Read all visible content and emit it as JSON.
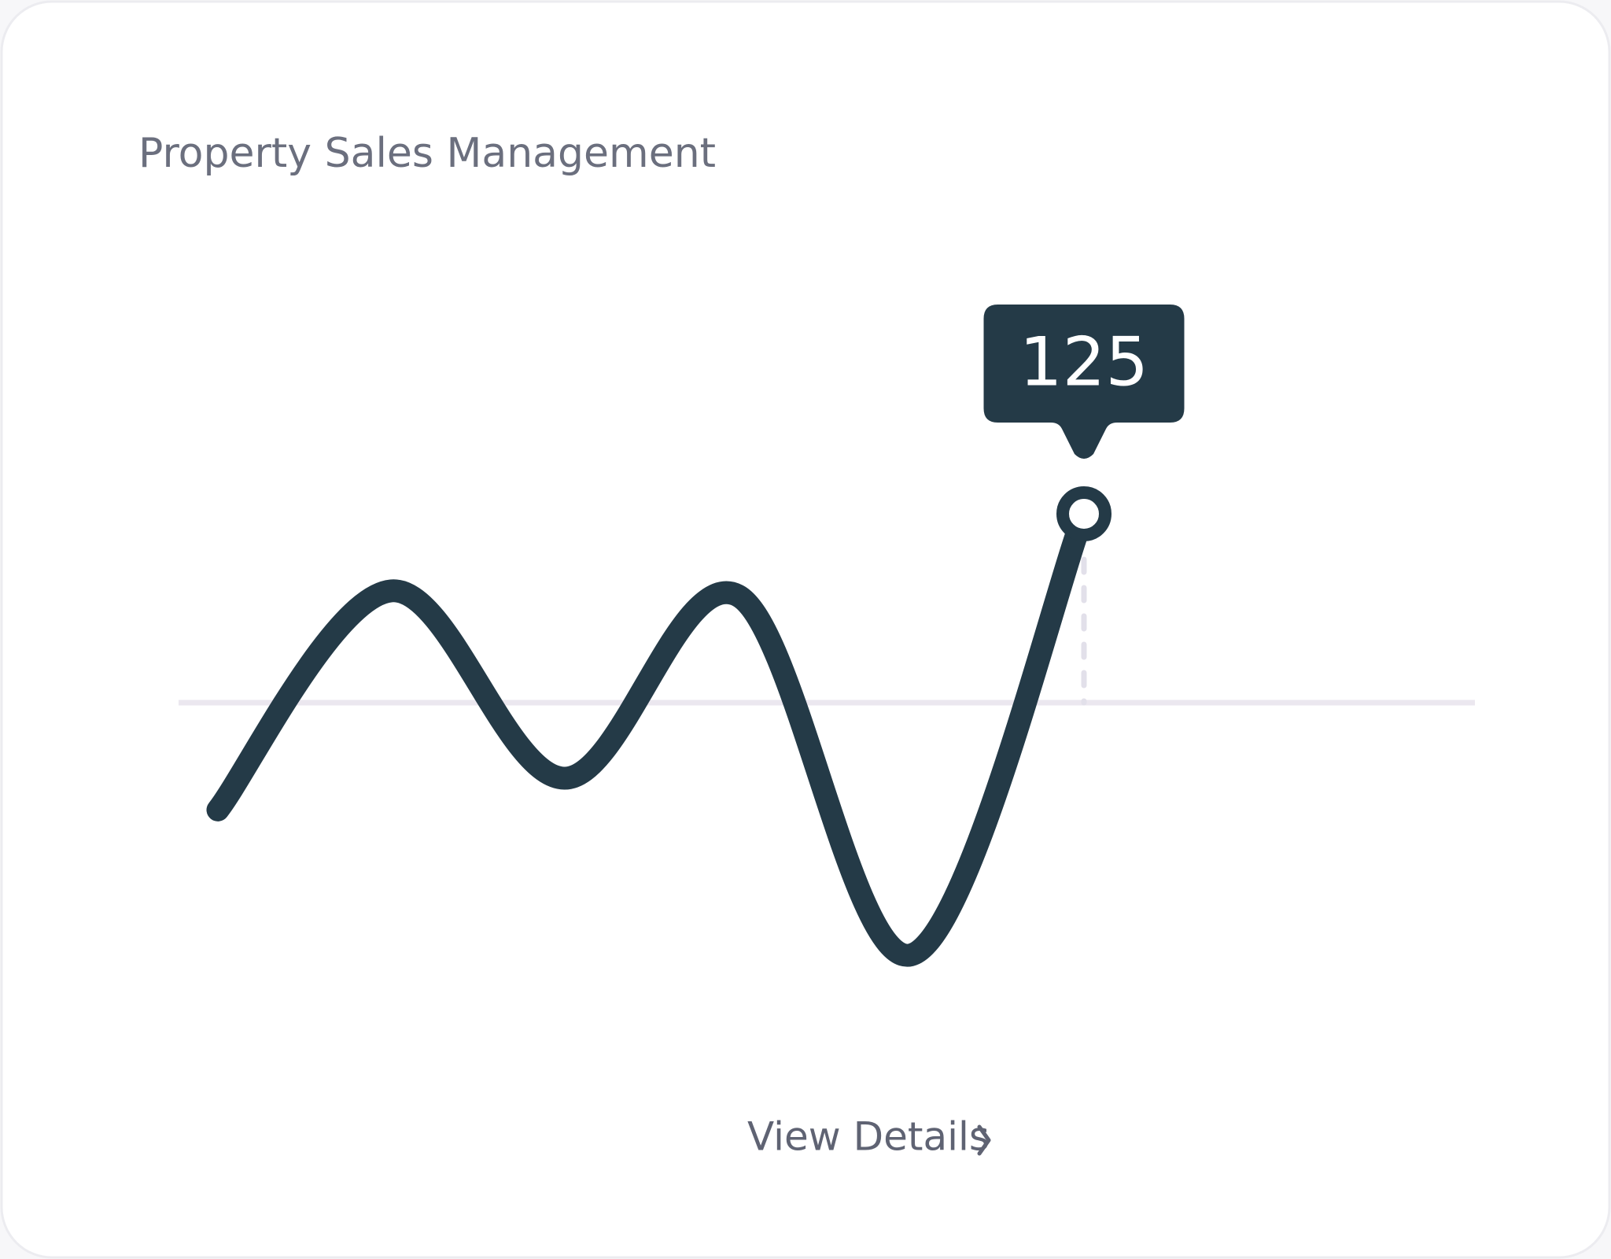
{
  "chart_data": {
    "type": "line",
    "title": "Property Sales Management",
    "categories": [
      null,
      null,
      null,
      null,
      null,
      null
    ],
    "values": [
      -71,
      74,
      -50,
      71,
      -167,
      125
    ],
    "highlight_label": "125",
    "color": "#243a47",
    "baseline": 0,
    "ylim": [
      -200,
      150
    ]
  },
  "link": {
    "label": "View Details"
  }
}
